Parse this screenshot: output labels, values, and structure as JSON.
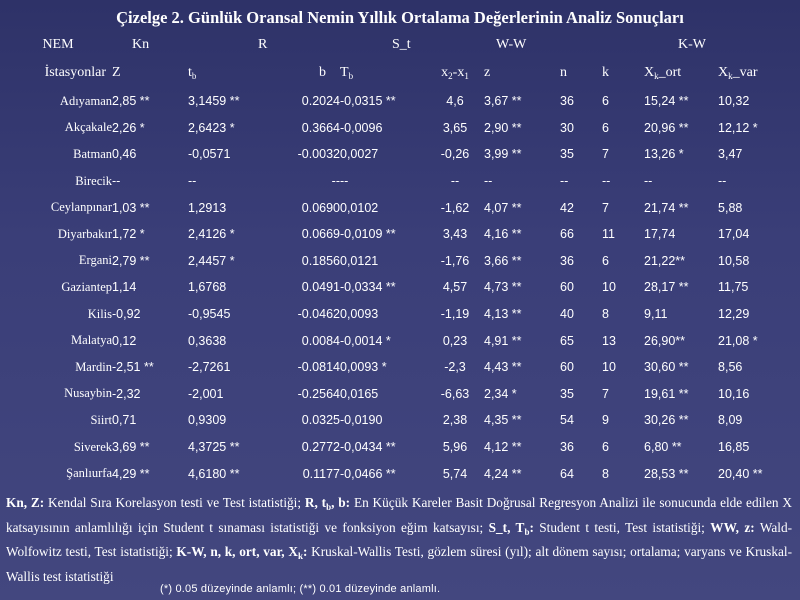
{
  "title": "Çizelge 2. Günlük Oransal Nemin Yıllık Ortalama Değerlerinin Analiz Sonuçları",
  "header_groups": {
    "nem": "NEM",
    "kn": "Kn",
    "r": "R",
    "s_t": "S_t",
    "ww": "W-W",
    "kw": "K-W"
  },
  "columns": {
    "station": "İstasyonlar",
    "z": "Z",
    "t_main": "t",
    "t_sub": "b",
    "b": "b",
    "T_main": "T",
    "T_sub": "b",
    "x_a": "x",
    "x_a_sub": "2",
    "x_mid": "-x",
    "x_b_sub": "1",
    "w_z": "z",
    "n": "n",
    "k": "k",
    "ort_main": "X",
    "ort_sub": "k",
    "ort_suffix": "_ort",
    "var_main": "X",
    "var_sub": "k",
    "var_suffix": "_var"
  },
  "rows": [
    {
      "station": "Adıyaman",
      "z": "2,85 **",
      "tb": "3,1459 **",
      "b": "0.2024",
      "Tb": "-0,0315 **",
      "x": "4,6",
      "w": "3,67 **",
      "n": "36",
      "k": "6",
      "ort": "15,24 **",
      "var": "10,32"
    },
    {
      "station": "Akçakale",
      "z": "2,26 *",
      "tb": "2,6423 *",
      "b": "0.3664",
      "Tb": "-0,0096",
      "x": "3,65",
      "w": "2,90 **",
      "n": "30",
      "k": "6",
      "ort": "20,96 **",
      "var": "12,12 *"
    },
    {
      "station": "Batman",
      "z": "0,46",
      "tb": "-0,0571",
      "b": "-0.0032",
      "Tb": "0,0027",
      "x": "-0,26",
      "w": "3,99 **",
      "n": "35",
      "k": "7",
      "ort": "13,26 *",
      "var": "3,47"
    },
    {
      "station": "Birecik",
      "z": "--",
      "tb": "--",
      "b": "--",
      "Tb": "--",
      "x": "--",
      "w": "--",
      "n": "--",
      "k": "--",
      "ort": "--",
      "var": "--"
    },
    {
      "station": "Ceylanpınar",
      "z": "1,03 **",
      "tb": "1,2913",
      "b": "0.0690",
      "Tb": "0,0102",
      "x": "-1,62",
      "w": "4,07 **",
      "n": "42",
      "k": "7",
      "ort": "21,74 **",
      "var": "5,88"
    },
    {
      "station": "Diyarbakır",
      "z": "1,72 *",
      "tb": "2,4126 *",
      "b": "0.0669",
      "Tb": "-0,0109 **",
      "x": "3,43",
      "w": "4,16 **",
      "n": "66",
      "k": "11",
      "ort": "17,74",
      "var": "17,04"
    },
    {
      "station": "Ergani",
      "z": "2,79 **",
      "tb": "2,4457 *",
      "b": "0.1856",
      "Tb": "0,0121",
      "x": "-1,76",
      "w": "3,66 **",
      "n": "36",
      "k": "6",
      "ort": "21,22**",
      "var": "10,58"
    },
    {
      "station": "Gaziantep",
      "z": "1,14",
      "tb": "1,6768",
      "b": "0.0491",
      "Tb": "-0,0334 **",
      "x": "4,57",
      "w": "4,73 **",
      "n": "60",
      "k": "10",
      "ort": "28,17 **",
      "var": "11,75"
    },
    {
      "station": "Kilis",
      "z": "-0,92",
      "tb": "-0,9545",
      "b": "-0.0462",
      "Tb": "0,0093",
      "x": "-1,19",
      "w": "4,13 **",
      "n": "40",
      "k": "8",
      "ort": "9,11",
      "var": "12,29"
    },
    {
      "station": "Malatya",
      "z": "0,12",
      "tb": "0,3638",
      "b": "0.0084",
      "Tb": "-0,0014 *",
      "x": "0,23",
      "w": "4,91 **",
      "n": "65",
      "k": "13",
      "ort": "26,90**",
      "var": "21,08 *"
    },
    {
      "station": "Mardin",
      "z": "-2,51 **",
      "tb": "-2,7261",
      "b": "-0.0814",
      "Tb": "0,0093 *",
      "x": "-2,3",
      "w": "4,43 **",
      "n": "60",
      "k": "10",
      "ort": "30,60 **",
      "var": "8,56"
    },
    {
      "station": "Nusaybin",
      "z": "-2,32",
      "tb": "-2,001",
      "b": "-0.2564",
      "Tb": "0,0165",
      "x": "-6,63",
      "w": "2,34  *",
      "n": "35",
      "k": "7",
      "ort": "19,61 **",
      "var": "10,16"
    },
    {
      "station": "Siirt",
      "z": "0,71",
      "tb": "0,9309",
      "b": "0.0325",
      "Tb": "-0,0190",
      "x": "2,38",
      "w": "4,35 **",
      "n": "54",
      "k": "9",
      "ort": "30,26 **",
      "var": "8,09"
    },
    {
      "station": "Siverek",
      "z": "3,69 **",
      "tb": "4,3725 **",
      "b": "0.2772",
      "Tb": "-0,0434 **",
      "x": "5,96",
      "w": "4,12 **",
      "n": "36",
      "k": "6",
      "ort": "6,80 **",
      "var": "16,85"
    },
    {
      "station": "Şanlıurfa",
      "z": "4,29 **",
      "tb": "4,6180 **",
      "b": "0.1177",
      "Tb": "-0,0466 **",
      "x": "5,74",
      "w": "4,24 **",
      "n": "64",
      "k": "8",
      "ort": "28,53 **",
      "var": "20,40 **"
    }
  ],
  "footer": {
    "kn_label": "Kn, Z:",
    "kn_text": " Kendal Sıra Korelasyon testi ve Test istatistiği; ",
    "r_label_a": "R, t",
    "r_label_sub": "b",
    "r_label_b": ", b:",
    "r_text": " En Küçük Kareler Basit Doğrusal Regresyon Analizi ile sonucunda elde edilen X katsayısının anlamlılığı için Student t sınaması istatistiği ve fonksiyon eğim katsayısı; ",
    "st_label_a": "S_t, T",
    "st_label_sub": "b",
    "st_label_b": ":",
    "st_text": " Student t testi, Test istatistiği; ",
    "ww_label": "WW, z:",
    "ww_text": " Wald-Wolfowitz testi, Test istatistiği; ",
    "kw_label_a": "K-W, n, k, ort, var, X",
    "kw_label_sub": "k",
    "kw_label_b": ":",
    "kw_text": " Kruskal-Wallis Testi, gözlem süresi (yıl); alt dönem sayısı;  ortalama; varyans ve Kruskal-Wallis test istatistiği"
  },
  "note": "(*) 0.05 düzeyinde anlamlı; (**) 0.01 düzeyinde anlamlı."
}
